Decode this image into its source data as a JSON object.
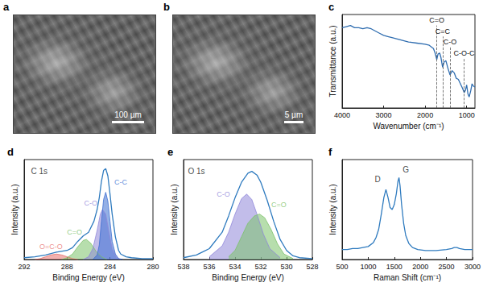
{
  "images": [
    {
      "panel": "a",
      "scale_bar": "100 µm"
    },
    {
      "panel": "b",
      "scale_bar": "5 µm"
    }
  ],
  "chart_data": [
    {
      "type": "line",
      "title": "c",
      "xlabel": "Wavenumber (cm⁻¹)",
      "ylabel": "Transmittance (a.u.)",
      "xlim": [
        4000,
        800
      ],
      "xticks": [
        4000,
        3000,
        2000,
        1000
      ],
      "ylim": [
        0.2,
        1.05
      ],
      "tick_labels": "x",
      "grid": false,
      "series": [
        {
          "color": "#2f6db0",
          "x": [
            4000,
            3900,
            3800,
            3700,
            3600,
            3500,
            3400,
            3300,
            3200,
            3100,
            3000,
            2900,
            2800,
            2600,
            2400,
            2200,
            2000,
            1900,
            1800,
            1760,
            1720,
            1690,
            1650,
            1620,
            1580,
            1540,
            1500,
            1450,
            1400,
            1350,
            1300,
            1250,
            1200,
            1150,
            1100,
            1060,
            1030,
            1000,
            970,
            940,
            900,
            870,
            840,
            800
          ],
          "values": [
            0.93,
            0.94,
            0.95,
            0.93,
            0.93,
            0.92,
            0.93,
            0.92,
            0.9,
            0.88,
            0.86,
            0.85,
            0.84,
            0.82,
            0.8,
            0.79,
            0.78,
            0.77,
            0.74,
            0.7,
            0.64,
            0.69,
            0.7,
            0.66,
            0.57,
            0.62,
            0.63,
            0.56,
            0.5,
            0.54,
            0.52,
            0.47,
            0.46,
            0.42,
            0.38,
            0.34,
            0.36,
            0.41,
            0.33,
            0.3,
            0.36,
            0.42,
            0.4,
            0.39
          ]
        }
      ],
      "annotations": [
        {
          "text": "C=O",
          "x": 1720,
          "y": 0.95,
          "line_style": "dashed"
        },
        {
          "text": "C=C",
          "x": 1580,
          "y": 0.85,
          "line_style": "dashed"
        },
        {
          "text": "C-O",
          "x": 1400,
          "y": 0.75,
          "line_style": "dashed"
        },
        {
          "text": "C-O-C",
          "x": 1060,
          "y": 0.65,
          "line_style": "dashed"
        }
      ]
    },
    {
      "type": "line",
      "title": "d",
      "xlabel": "Binding Energy (eV)",
      "ylabel": "Intensity (a.u.)",
      "xlim": [
        292,
        280
      ],
      "xticks": [
        292,
        288,
        284,
        280
      ],
      "ylim": [
        0,
        1.1
      ],
      "tick_labels": "x",
      "grid": false,
      "series": [
        {
          "name": "O=C-O",
          "type": "area",
          "color": "#e8736f",
          "label_at": [
            289.5,
            0.14
          ],
          "x": [
            291,
            290.5,
            290,
            289.5,
            289,
            288.5,
            288,
            287.5,
            287
          ],
          "values": [
            0,
            0.01,
            0.03,
            0.05,
            0.06,
            0.05,
            0.03,
            0.01,
            0
          ]
        },
        {
          "name": "C=O",
          "type": "area",
          "color": "#7cc26a",
          "label_at": [
            287.3,
            0.3
          ],
          "x": [
            288.5,
            288,
            287.5,
            287,
            286.5,
            286.2,
            285.8,
            285.3,
            284.8,
            284.3
          ],
          "values": [
            0,
            0.02,
            0.06,
            0.14,
            0.21,
            0.22,
            0.18,
            0.09,
            0.03,
            0
          ]
        },
        {
          "name": "C-O",
          "type": "area",
          "color": "#8f86d9",
          "label_at": [
            285.8,
            0.62
          ],
          "x": [
            286.5,
            286,
            285.6,
            285.2,
            284.9,
            284.7,
            284.4,
            284.1,
            283.8,
            283.4,
            283
          ],
          "values": [
            0,
            0.03,
            0.12,
            0.32,
            0.5,
            0.55,
            0.5,
            0.3,
            0.12,
            0.02,
            0
          ]
        },
        {
          "name": "C-C",
          "type": "area",
          "color": "#3d6fd1",
          "label_at": [
            283.0,
            0.85
          ],
          "x": [
            285.6,
            285.2,
            285,
            284.8,
            284.6,
            284.4,
            284.2,
            284,
            283.8,
            283.5,
            283.2,
            282.8
          ],
          "values": [
            0,
            0.05,
            0.16,
            0.42,
            0.66,
            0.74,
            0.64,
            0.42,
            0.2,
            0.06,
            0.01,
            0
          ]
        },
        {
          "type": "line",
          "color": "#2f7bbf",
          "x": [
            292,
            291,
            290,
            289,
            288,
            287.5,
            287,
            286.5,
            286,
            285.5,
            285.2,
            285,
            284.8,
            284.6,
            284.4,
            284.2,
            284,
            283.8,
            283.5,
            283.2,
            283,
            282.5,
            282,
            281,
            280
          ],
          "values": [
            0.02,
            0.03,
            0.05,
            0.08,
            0.1,
            0.13,
            0.2,
            0.26,
            0.3,
            0.42,
            0.55,
            0.68,
            0.86,
            0.98,
            1.0,
            0.92,
            0.72,
            0.5,
            0.25,
            0.1,
            0.06,
            0.03,
            0.02,
            0.01,
            0.01
          ]
        }
      ],
      "annotations": [
        {
          "text": "C 1s",
          "x": 290.6,
          "y": 0.97
        }
      ]
    },
    {
      "type": "line",
      "title": "e",
      "xlabel": "Binding Energy (eV)",
      "ylabel": "Intensity (a.u.)",
      "xlim": [
        538,
        528
      ],
      "xticks": [
        538,
        536,
        534,
        532,
        530,
        528
      ],
      "ylim": [
        0,
        1.1
      ],
      "tick_labels": "x",
      "grid": false,
      "series": [
        {
          "name": "C-O",
          "type": "area",
          "color": "#8f86d9",
          "label_at": [
            534.9,
            0.72
          ],
          "x": [
            536,
            535,
            534.5,
            534,
            533.5,
            533.1,
            532.7,
            532.3,
            531.8,
            531.3,
            530.5
          ],
          "values": [
            0.03,
            0.15,
            0.3,
            0.5,
            0.67,
            0.72,
            0.66,
            0.5,
            0.28,
            0.12,
            0.02
          ]
        },
        {
          "name": "C=O",
          "type": "area",
          "color": "#7cc26a",
          "label_at": [
            530.6,
            0.6
          ],
          "x": [
            534.5,
            534,
            533.5,
            533,
            532.5,
            532.1,
            531.7,
            531.2,
            530.7,
            530.2,
            529.5
          ],
          "values": [
            0.03,
            0.1,
            0.25,
            0.4,
            0.48,
            0.5,
            0.46,
            0.33,
            0.17,
            0.06,
            0.01
          ]
        },
        {
          "type": "line",
          "color": "#2f7bbf",
          "x": [
            538,
            537,
            536,
            535,
            534.5,
            534,
            533.5,
            533,
            532.7,
            532.3,
            532,
            531.5,
            531,
            530.5,
            530,
            529.5,
            529,
            528
          ],
          "values": [
            0.02,
            0.05,
            0.12,
            0.3,
            0.48,
            0.68,
            0.85,
            0.95,
            0.97,
            0.93,
            0.85,
            0.65,
            0.42,
            0.22,
            0.1,
            0.04,
            0.02,
            0.01
          ]
        }
      ],
      "annotations": [
        {
          "text": "O 1s",
          "x": 537,
          "y": 0.97
        }
      ]
    },
    {
      "type": "line",
      "title": "f",
      "xlabel": "Raman Shift (cm⁻¹)",
      "ylabel": "Intensity (a.u.)",
      "xlim": [
        500,
        3000
      ],
      "xticks": [
        500,
        1000,
        1500,
        2000,
        2500,
        3000
      ],
      "ylim": [
        0,
        1
      ],
      "tick_labels": "x",
      "grid": false,
      "series": [
        {
          "color": "#2f7bbf",
          "x": [
            500,
            600,
            700,
            800,
            900,
            1000,
            1100,
            1150,
            1200,
            1250,
            1300,
            1340,
            1380,
            1420,
            1460,
            1500,
            1540,
            1570,
            1590,
            1610,
            1640,
            1680,
            1720,
            1780,
            1850,
            1950,
            2100,
            2300,
            2500,
            2600,
            2650,
            2700,
            2750,
            2850,
            2950,
            3000
          ],
          "values": [
            0.1,
            0.1,
            0.11,
            0.11,
            0.12,
            0.13,
            0.17,
            0.22,
            0.3,
            0.45,
            0.62,
            0.7,
            0.62,
            0.52,
            0.5,
            0.55,
            0.66,
            0.78,
            0.82,
            0.74,
            0.55,
            0.36,
            0.24,
            0.16,
            0.12,
            0.1,
            0.09,
            0.09,
            0.1,
            0.11,
            0.12,
            0.12,
            0.11,
            0.1,
            0.1,
            0.1
          ]
        }
      ],
      "annotations": [
        {
          "text": "D",
          "x": 1180,
          "y": 0.8
        },
        {
          "text": "G",
          "x": 1720,
          "y": 0.9
        }
      ]
    }
  ]
}
